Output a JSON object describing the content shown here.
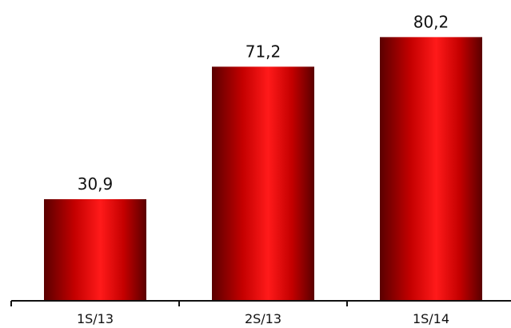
{
  "chart_data": {
    "type": "bar",
    "categories": [
      "1S/13",
      "2S/13",
      "1S/14"
    ],
    "values": [
      30.9,
      71.2,
      80.2
    ],
    "data_labels": [
      "30,9",
      "71,2",
      "80,2"
    ],
    "title": "",
    "xlabel": "",
    "ylabel": "",
    "ylim": [
      0,
      90
    ],
    "grid": false,
    "legend": "none",
    "colors": {
      "bar_dark": "#5a0000",
      "bar_mid": "#c40000",
      "bar_light": "#ff1a1a",
      "axis": "#111111"
    }
  }
}
